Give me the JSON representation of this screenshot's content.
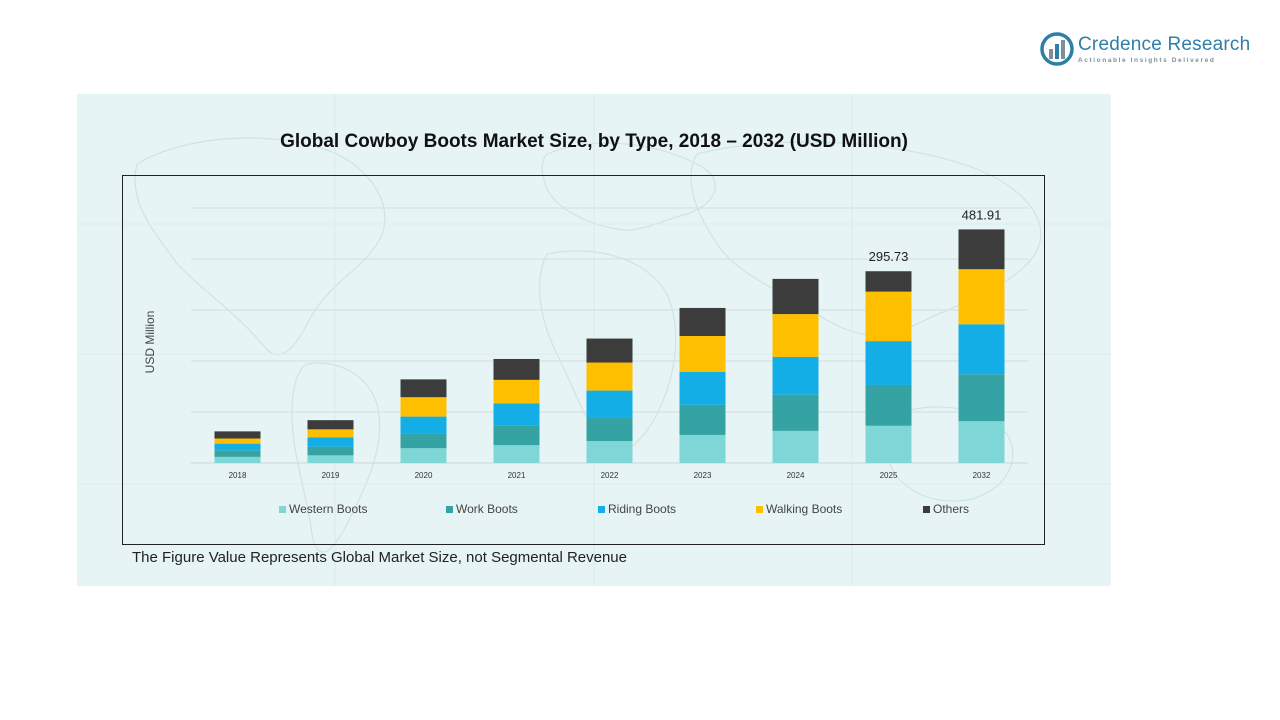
{
  "logo": {
    "name": "Credence Research",
    "tagline": "Actionable Insights Delivered",
    "color": "#2d7fa8"
  },
  "footnote": "The Figure Value Represents Global Market Size, not Segmental Revenue",
  "chart_data": {
    "type": "bar",
    "stacked": true,
    "title": "Global Cowboy Boots Market Size, by Type, 2018 – 2032 (USD Million)",
    "xlabel": "",
    "ylabel": "USD Million",
    "ylim": [
      0,
      500
    ],
    "grid": true,
    "legend_position": "bottom",
    "categories": [
      "2018",
      "2019",
      "2020",
      "2021",
      "2022",
      "2023",
      "2024",
      "2025",
      "2032"
    ],
    "series": [
      {
        "name": "Western Boots",
        "color": "#7fd6d6",
        "values": [
          12,
          15,
          29,
          35,
          43,
          55,
          63,
          73,
          82
        ]
      },
      {
        "name": "Work Boots",
        "color": "#35a3a3",
        "values": [
          13,
          17,
          28,
          39,
          47,
          59,
          71,
          80,
          92
        ]
      },
      {
        "name": "Riding Boots",
        "color": "#13aee6",
        "values": [
          13,
          18,
          34,
          43,
          52,
          65,
          74,
          86,
          98
        ]
      },
      {
        "name": "Walking Boots",
        "color": "#fdbf00",
        "values": [
          10,
          16,
          38,
          46,
          55,
          70,
          84,
          97,
          108
        ]
      },
      {
        "name": "Others",
        "color": "#3c3c3c",
        "values": [
          14,
          18,
          35,
          41,
          47,
          55,
          69,
          40,
          78
        ]
      }
    ],
    "data_labels": [
      {
        "category": "2025",
        "text": "295.73"
      },
      {
        "category": "2032",
        "text": "481.91"
      }
    ]
  }
}
